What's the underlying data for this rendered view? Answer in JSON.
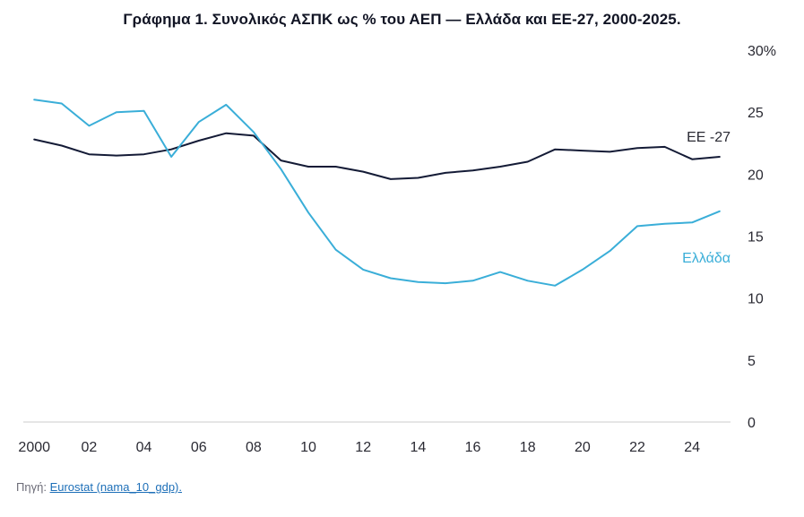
{
  "title": "Γράφημα 1. Συνολικός ΑΣΠΚ ως % του ΑΕΠ — Ελλάδα και ΕΕ-27, 2000-2025.",
  "source": {
    "prefix": "Πηγή: ",
    "link_text": "Eurostat (nama_10_gdp)."
  },
  "colors": {
    "eu": "#141b36",
    "greece": "#3aaed8",
    "axis": "#cccccc"
  },
  "chart_data": {
    "type": "line",
    "title": "Γράφημα 1. Συνολικός ΑΣΠΚ ως % του ΑΕΠ — Ελλάδα και ΕΕ-27, 2000-2025.",
    "xlabel": "",
    "ylabel": "",
    "x": [
      2000,
      2001,
      2002,
      2003,
      2004,
      2005,
      2006,
      2007,
      2008,
      2009,
      2010,
      2011,
      2012,
      2013,
      2014,
      2015,
      2016,
      2017,
      2018,
      2019,
      2020,
      2021,
      2022,
      2023,
      2024,
      2025
    ],
    "xlim": [
      1999.6,
      2025.4
    ],
    "ylim": [
      0,
      30
    ],
    "x_ticks": [
      "2000",
      "02",
      "04",
      "06",
      "08",
      "10",
      "12",
      "14",
      "16",
      "18",
      "20",
      "22",
      "24"
    ],
    "x_tick_values": [
      2000,
      2002,
      2004,
      2006,
      2008,
      2010,
      2012,
      2014,
      2016,
      2018,
      2020,
      2022,
      2024
    ],
    "y_ticks": [
      "0",
      "5",
      "10",
      "15",
      "20",
      "25",
      "30%"
    ],
    "y_tick_values": [
      0,
      5,
      10,
      15,
      20,
      25,
      30
    ],
    "y_axis_side": "right",
    "grid": false,
    "series": [
      {
        "name": "ΕΕ -27",
        "color": "#141b36",
        "values": [
          22.8,
          22.3,
          21.6,
          21.5,
          21.6,
          22.0,
          22.7,
          23.3,
          23.1,
          21.1,
          20.6,
          20.6,
          20.2,
          19.6,
          19.7,
          20.1,
          20.3,
          20.6,
          21.0,
          22.0,
          21.9,
          21.8,
          22.1,
          22.2,
          21.2,
          21.4
        ]
      },
      {
        "name": "Ελλάδα",
        "color": "#3aaed8",
        "values": [
          26.0,
          25.7,
          23.9,
          25.0,
          25.1,
          21.4,
          24.2,
          25.6,
          23.4,
          20.4,
          16.9,
          13.9,
          12.3,
          11.6,
          11.3,
          11.2,
          11.4,
          12.1,
          11.4,
          11.0,
          12.3,
          13.8,
          15.8,
          16.0,
          16.1,
          17.0
        ]
      }
    ]
  }
}
